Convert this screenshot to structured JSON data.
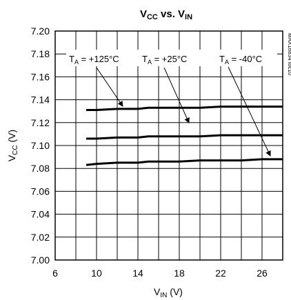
{
  "chart_data": {
    "type": "line",
    "title": {
      "main1": "V",
      "sub1": "CC",
      "mid": " vs. ",
      "main2": "V",
      "sub2": "IN"
    },
    "xlabel": {
      "main": "V",
      "sub": "IN",
      "unit": " (V)"
    },
    "ylabel": {
      "main": "V",
      "sub": "CC",
      "unit": " (V)"
    },
    "xlim": [
      6,
      28
    ],
    "ylim": [
      7.0,
      7.2
    ],
    "x_ticks": [
      6,
      10,
      14,
      18,
      22,
      26
    ],
    "y_ticks": [
      7.0,
      7.02,
      7.04,
      7.06,
      7.08,
      7.1,
      7.12,
      7.14,
      7.16,
      7.18,
      7.2
    ],
    "grid": true,
    "series": [
      {
        "name": {
          "t": "T",
          "sub": "A",
          "rest": " = +125°C"
        },
        "x": [
          9,
          10,
          12,
          14,
          15,
          18,
          20,
          22,
          24,
          26,
          28
        ],
        "y": [
          7.131,
          7.131,
          7.132,
          7.132,
          7.133,
          7.133,
          7.133,
          7.134,
          7.134,
          7.134,
          7.134
        ]
      },
      {
        "name": {
          "t": "T",
          "sub": "A",
          "rest": " = +25°C"
        },
        "x": [
          9,
          10,
          12,
          14,
          15,
          18,
          20,
          22,
          24,
          26,
          28
        ],
        "y": [
          7.106,
          7.106,
          7.107,
          7.107,
          7.108,
          7.108,
          7.108,
          7.109,
          7.109,
          7.109,
          7.109
        ]
      },
      {
        "name": {
          "t": "T",
          "sub": "A",
          "rest": " = -40°C"
        },
        "x": [
          9,
          10,
          12,
          14,
          15,
          18,
          20,
          22,
          24,
          26,
          28
        ],
        "y": [
          7.083,
          7.084,
          7.085,
          7.085,
          7.086,
          7.086,
          7.087,
          7.087,
          7.087,
          7.088,
          7.088
        ]
      }
    ],
    "figure_id": "MAX16834 toc10"
  }
}
